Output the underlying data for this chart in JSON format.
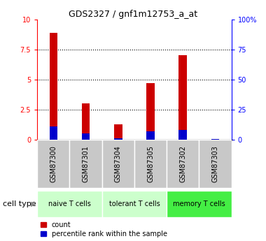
{
  "title": "GDS2327 / gnf1m12753_a_at",
  "samples": [
    "GSM87300",
    "GSM87301",
    "GSM87304",
    "GSM87305",
    "GSM87302",
    "GSM87303"
  ],
  "count_values": [
    8.9,
    3.0,
    1.3,
    4.7,
    7.0,
    0.05
  ],
  "percentile_values": [
    1.1,
    0.5,
    0.15,
    0.7,
    0.8,
    0.05
  ],
  "ylim_left": [
    0,
    10
  ],
  "ylim_right": [
    0,
    100
  ],
  "yticks_left": [
    0,
    2.5,
    5,
    7.5,
    10
  ],
  "yticks_right": [
    0,
    25,
    50,
    75,
    100
  ],
  "bar_color_red": "#cc0000",
  "bar_color_blue": "#0000cc",
  "bar_width": 0.25,
  "bg_color_plot": "#ffffff",
  "bg_color_sample": "#c8c8c8",
  "cell_groups": [
    {
      "label": "naive T cells",
      "start": 0,
      "end": 2,
      "color": "#ccffcc"
    },
    {
      "label": "tolerant T cells",
      "start": 2,
      "end": 4,
      "color": "#ccffcc"
    },
    {
      "label": "memory T cells",
      "start": 4,
      "end": 6,
      "color": "#44ee44"
    }
  ],
  "legend_red_label": "count",
  "legend_blue_label": "percentile rank within the sample",
  "cell_type_label": "cell type"
}
